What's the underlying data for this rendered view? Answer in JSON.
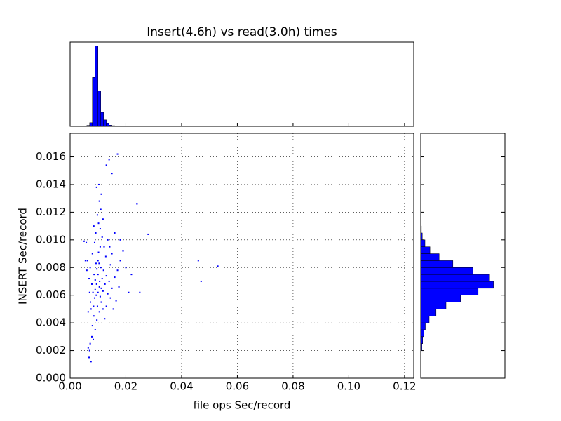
{
  "chart_data": [
    {
      "type": "scatter",
      "title": "Insert(4.6h) vs read(3.0h) times",
      "x_label": "file ops Sec/record",
      "y_label": "INSERT Sec/record",
      "color": "#0000ff",
      "grid": true,
      "xlim": [
        0,
        0.1233
      ],
      "ylim": [
        0,
        0.0177
      ],
      "xticks": [
        {
          "value": 0,
          "label": "0.00"
        },
        {
          "value": 0.02,
          "label": "0.02"
        },
        {
          "value": 0.04,
          "label": "0.04"
        },
        {
          "value": 0.06,
          "label": "0.06"
        },
        {
          "value": 0.08,
          "label": "0.08"
        },
        {
          "value": 0.1,
          "label": "0.10"
        },
        {
          "value": 0.12,
          "label": "0.12"
        }
      ],
      "yticks": [
        {
          "value": 0,
          "label": "0.000"
        },
        {
          "value": 0.002,
          "label": "0.002"
        },
        {
          "value": 0.004,
          "label": "0.004"
        },
        {
          "value": 0.006,
          "label": "0.006"
        },
        {
          "value": 0.008,
          "label": "0.008"
        },
        {
          "value": 0.01,
          "label": "0.010"
        },
        {
          "value": 0.012,
          "label": "0.012"
        },
        {
          "value": 0.014,
          "label": "0.014"
        },
        {
          "value": 0.016,
          "label": "0.016"
        }
      ],
      "x": [
        0.0075,
        0.0082,
        0.009,
        0.0095,
        0.01,
        0.0105,
        0.011,
        0.0088,
        0.0093,
        0.0102,
        0.0108,
        0.0115,
        0.012,
        0.0098,
        0.0085,
        0.008,
        0.0078,
        0.0072,
        0.007,
        0.0068,
        0.0075,
        0.0065,
        0.0083,
        0.009,
        0.0096,
        0.0105,
        0.0112,
        0.0118,
        0.0125,
        0.013,
        0.0135,
        0.014,
        0.0145,
        0.015,
        0.016,
        0.017,
        0.018,
        0.019,
        0.0175,
        0.0165,
        0.0155,
        0.02,
        0.021,
        0.022,
        0.0128,
        0.0122,
        0.0115,
        0.0108,
        0.0102,
        0.0098,
        0.011,
        0.0105,
        0.0112,
        0.0095,
        0.0103,
        0.0118,
        0.0135,
        0.0142,
        0.016,
        0.018,
        0.0072,
        0.0068,
        0.007,
        0.0073,
        0.0065,
        0.0062,
        0.006,
        0.0058,
        0.0055,
        0.0088,
        0.0092,
        0.0085,
        0.008,
        0.0078,
        0.0086,
        0.0094,
        0.01,
        0.0106,
        0.0112,
        0.0118,
        0.0124,
        0.013,
        0.0145,
        0.015,
        0.01,
        0.0096,
        0.0104,
        0.009,
        0.0084,
        0.0108,
        0.046,
        0.047,
        0.053,
        0.028,
        0.024,
        0.017,
        0.014,
        0.015,
        0.025,
        0.005,
        0.013
      ],
      "values": [
        0.005,
        0.0062,
        0.0071,
        0.0068,
        0.0075,
        0.0066,
        0.008,
        0.0058,
        0.0083,
        0.0091,
        0.0059,
        0.0072,
        0.0078,
        0.0052,
        0.0045,
        0.0038,
        0.003,
        0.0025,
        0.002,
        0.0015,
        0.0012,
        0.0022,
        0.0028,
        0.0035,
        0.0042,
        0.0048,
        0.0055,
        0.0063,
        0.0068,
        0.0074,
        0.0061,
        0.007,
        0.0082,
        0.0065,
        0.0073,
        0.0078,
        0.0085,
        0.0092,
        0.0066,
        0.0056,
        0.005,
        0.008,
        0.0062,
        0.0075,
        0.0088,
        0.0095,
        0.0102,
        0.0108,
        0.0112,
        0.0118,
        0.0122,
        0.0128,
        0.0133,
        0.0138,
        0.014,
        0.0115,
        0.01,
        0.0095,
        0.0105,
        0.01,
        0.008,
        0.0072,
        0.0062,
        0.0055,
        0.0048,
        0.0085,
        0.0078,
        0.0098,
        0.0085,
        0.0098,
        0.0105,
        0.011,
        0.009,
        0.0068,
        0.0075,
        0.006,
        0.0062,
        0.007,
        0.0065,
        0.005,
        0.0043,
        0.0052,
        0.0058,
        0.009,
        0.0085,
        0.0079,
        0.0083,
        0.0064,
        0.0052,
        0.0095,
        0.0085,
        0.007,
        0.0081,
        0.0104,
        0.0126,
        0.0162,
        0.0158,
        0.0148,
        0.0062,
        0.0099,
        0.0154
      ]
    },
    {
      "type": "histogram",
      "orientation": "vertical",
      "color": "#0000ff",
      "xlim": [
        0,
        0.1233
      ],
      "ylim": [
        0,
        1050
      ],
      "bins": [
        0.004,
        0.005,
        0.006,
        0.007,
        0.008,
        0.009,
        0.01,
        0.011,
        0.012,
        0.013,
        0.014,
        0.015,
        0.016,
        0.017,
        0.018,
        0.019,
        0.02,
        0.021,
        0.022
      ],
      "values": [
        1,
        3,
        12,
        45,
        610,
        1000,
        440,
        175,
        80,
        35,
        15,
        8,
        4,
        2,
        1,
        1,
        1,
        1
      ]
    },
    {
      "type": "histogram",
      "orientation": "horizontal",
      "color": "#0000ff",
      "xlim": [
        0,
        1100
      ],
      "ylim": [
        0,
        0.0177
      ],
      "bins": [
        0.001,
        0.0015,
        0.002,
        0.0025,
        0.003,
        0.0035,
        0.004,
        0.0045,
        0.005,
        0.0055,
        0.006,
        0.0065,
        0.007,
        0.0075,
        0.008,
        0.0085,
        0.009,
        0.0095,
        0.01,
        0.0105,
        0.011
      ],
      "values": [
        2,
        5,
        15,
        25,
        40,
        60,
        110,
        200,
        330,
        520,
        750,
        950,
        900,
        680,
        420,
        240,
        120,
        55,
        20,
        8
      ]
    }
  ]
}
